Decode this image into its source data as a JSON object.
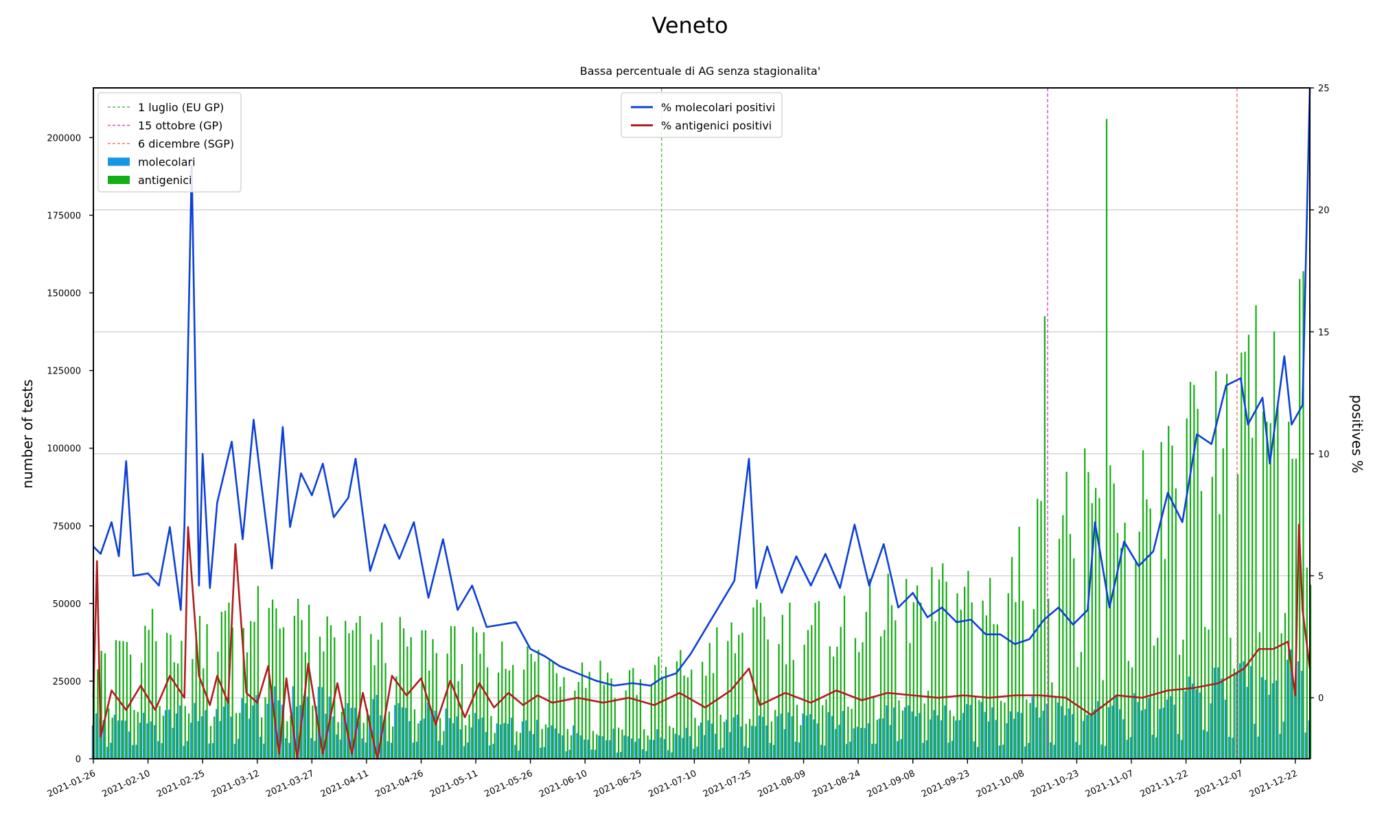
{
  "chart_data": {
    "type": "bar",
    "title": "Veneto",
    "subtitle": "Bassa percentuale di AG senza stagionalita'",
    "ylabel": "number of tests",
    "y2label": "positives %",
    "x_start": "2021-01-26",
    "x_end": "2021-12-26",
    "xtick_labels": [
      "2021-01-26",
      "2021-02-10",
      "2021-02-25",
      "2021-03-12",
      "2021-03-27",
      "2021-04-11",
      "2021-04-26",
      "2021-05-11",
      "2021-05-26",
      "2021-06-10",
      "2021-06-25",
      "2021-07-10",
      "2021-07-25",
      "2021-08-09",
      "2021-08-24",
      "2021-09-08",
      "2021-09-23",
      "2021-10-08",
      "2021-10-23",
      "2021-11-07",
      "2021-11-22",
      "2021-12-07",
      "2021-12-22"
    ],
    "ylim": [
      0,
      216000
    ],
    "yticks": [
      0,
      25000,
      50000,
      75000,
      100000,
      125000,
      150000,
      175000,
      200000
    ],
    "y2lim": [
      -2.5,
      25
    ],
    "y2ticks": [
      0,
      5,
      10,
      15,
      20,
      25
    ],
    "grid": "horizontal on right axis",
    "colors": {
      "molecolari": "#1696e6",
      "antigenici": "#14ad14",
      "mol_pos": "#0b3fd6",
      "ag_pos": "#b01c1c",
      "vline_eu": "#55bb55",
      "vline_oct": "#dd44bb",
      "vline_dec": "#ee7777"
    },
    "vlines": [
      {
        "date": "2021-07-01",
        "label": "1 luglio (EU GP)",
        "color": "#55bb55"
      },
      {
        "date": "2021-10-15",
        "label": "15 ottobre (GP)",
        "color": "#dd44bb"
      },
      {
        "date": "2021-12-06",
        "label": "6 dicembre (SGP)",
        "color": "#ee7777"
      }
    ],
    "legend_left": {
      "position": "upper-left",
      "entries": [
        {
          "label": "1 luglio (EU GP)",
          "kind": "dash",
          "color": "#55bb55"
        },
        {
          "label": "15 ottobre (GP)",
          "kind": "dash",
          "color": "#dd44bb"
        },
        {
          "label": "6 dicembre (SGP)",
          "kind": "dash",
          "color": "#ee7777"
        },
        {
          "label": "molecolari",
          "kind": "patch",
          "color": "#1696e6"
        },
        {
          "label": "antigenici",
          "kind": "patch",
          "color": "#14ad14"
        }
      ]
    },
    "legend_center": {
      "position": "upper-center",
      "entries": [
        {
          "label": "% molecolari positivi",
          "kind": "line",
          "color": "#0b3fd6"
        },
        {
          "label": "% antigenici positivi",
          "kind": "line",
          "color": "#b01c1c"
        }
      ]
    },
    "series_bars": [
      {
        "name": "molecolari",
        "points": [
          [
            "2021-01-26",
            13000
          ],
          [
            "2021-02-05",
            12000
          ],
          [
            "2021-02-15",
            13000
          ],
          [
            "2021-02-25",
            15000
          ],
          [
            "2021-03-07",
            16000
          ],
          [
            "2021-03-17",
            19000
          ],
          [
            "2021-03-27",
            19000
          ],
          [
            "2021-04-06",
            17000
          ],
          [
            "2021-04-16",
            16000
          ],
          [
            "2021-04-26",
            15000
          ],
          [
            "2021-05-06",
            13000
          ],
          [
            "2021-05-16",
            11000
          ],
          [
            "2021-05-26",
            10000
          ],
          [
            "2021-06-05",
            9000
          ],
          [
            "2021-06-15",
            8000
          ],
          [
            "2021-06-25",
            7000
          ],
          [
            "2021-07-05",
            8000
          ],
          [
            "2021-07-15",
            10000
          ],
          [
            "2021-07-25",
            12000
          ],
          [
            "2021-08-04",
            13000
          ],
          [
            "2021-08-14",
            12000
          ],
          [
            "2021-08-24",
            13000
          ],
          [
            "2021-09-03",
            14000
          ],
          [
            "2021-09-13",
            15000
          ],
          [
            "2021-09-23",
            14000
          ],
          [
            "2021-10-03",
            15000
          ],
          [
            "2021-10-13",
            16000
          ],
          [
            "2021-10-23",
            16000
          ],
          [
            "2021-11-02",
            16000
          ],
          [
            "2021-11-12",
            18000
          ],
          [
            "2021-11-22",
            21000
          ],
          [
            "2021-12-02",
            24000
          ],
          [
            "2021-12-12",
            26000
          ],
          [
            "2021-12-22",
            28000
          ],
          [
            "2021-12-26",
            30000
          ]
        ]
      },
      {
        "name": "antigenici",
        "points": [
          [
            "2021-01-26",
            38000
          ],
          [
            "2021-02-05",
            36000
          ],
          [
            "2021-02-15",
            40000
          ],
          [
            "2021-02-25",
            40000
          ],
          [
            "2021-03-07",
            44000
          ],
          [
            "2021-03-17",
            45000
          ],
          [
            "2021-03-27",
            40000
          ],
          [
            "2021-04-06",
            38000
          ],
          [
            "2021-04-16",
            36000
          ],
          [
            "2021-04-26",
            36000
          ],
          [
            "2021-05-06",
            34000
          ],
          [
            "2021-05-16",
            32000
          ],
          [
            "2021-05-26",
            31000
          ],
          [
            "2021-06-05",
            29000
          ],
          [
            "2021-06-15",
            27000
          ],
          [
            "2021-06-25",
            25000
          ],
          [
            "2021-07-05",
            28000
          ],
          [
            "2021-07-15",
            34000
          ],
          [
            "2021-07-25",
            40000
          ],
          [
            "2021-08-04",
            42000
          ],
          [
            "2021-08-14",
            43000
          ],
          [
            "2021-08-24",
            45000
          ],
          [
            "2021-09-03",
            47000
          ],
          [
            "2021-09-13",
            50000
          ],
          [
            "2021-09-23",
            52000
          ],
          [
            "2021-10-03",
            53000
          ],
          [
            "2021-10-13",
            70000
          ],
          [
            "2021-10-23",
            78000
          ],
          [
            "2021-11-02",
            80000
          ],
          [
            "2021-11-12",
            85000
          ],
          [
            "2021-11-22",
            95000
          ],
          [
            "2021-12-02",
            100000
          ],
          [
            "2021-12-12",
            115000
          ],
          [
            "2021-12-22",
            130000
          ],
          [
            "2021-12-26",
            140000
          ]
        ]
      }
    ],
    "bar_spikes": [
      {
        "series": "antigenici",
        "date": "2021-10-14",
        "value": 142500
      },
      {
        "series": "antigenici",
        "date": "2021-10-31",
        "value": 206000
      },
      {
        "series": "antigenici",
        "date": "2021-12-11",
        "value": 146000
      },
      {
        "series": "antigenici",
        "date": "2021-12-24",
        "value": 157000
      }
    ],
    "series_lines": [
      {
        "name": "% molecolari positivi",
        "axis": "right",
        "points": [
          [
            "2021-01-26",
            6.2
          ],
          [
            "2021-01-28",
            5.9
          ],
          [
            "2021-01-31",
            7.2
          ],
          [
            "2021-02-02",
            5.8
          ],
          [
            "2021-02-04",
            9.7
          ],
          [
            "2021-02-06",
            5.0
          ],
          [
            "2021-02-10",
            5.1
          ],
          [
            "2021-02-13",
            4.6
          ],
          [
            "2021-02-16",
            7.0
          ],
          [
            "2021-02-19",
            3.6
          ],
          [
            "2021-02-20",
            7.0
          ],
          [
            "2021-02-22",
            21.8
          ],
          [
            "2021-02-24",
            4.6
          ],
          [
            "2021-02-25",
            10.0
          ],
          [
            "2021-02-27",
            4.5
          ],
          [
            "2021-03-01",
            8.0
          ],
          [
            "2021-03-05",
            10.5
          ],
          [
            "2021-03-08",
            6.5
          ],
          [
            "2021-03-11",
            11.4
          ],
          [
            "2021-03-13",
            8.9
          ],
          [
            "2021-03-16",
            5.3
          ],
          [
            "2021-03-19",
            11.1
          ],
          [
            "2021-03-21",
            7.0
          ],
          [
            "2021-03-24",
            9.2
          ],
          [
            "2021-03-27",
            8.3
          ],
          [
            "2021-03-30",
            9.6
          ],
          [
            "2021-04-02",
            7.4
          ],
          [
            "2021-04-06",
            8.2
          ],
          [
            "2021-04-08",
            9.8
          ],
          [
            "2021-04-12",
            5.2
          ],
          [
            "2021-04-16",
            7.1
          ],
          [
            "2021-04-20",
            5.7
          ],
          [
            "2021-04-24",
            7.2
          ],
          [
            "2021-04-28",
            4.1
          ],
          [
            "2021-05-02",
            6.5
          ],
          [
            "2021-05-06",
            3.6
          ],
          [
            "2021-05-10",
            4.6
          ],
          [
            "2021-05-14",
            2.9
          ],
          [
            "2021-05-18",
            3.0
          ],
          [
            "2021-05-22",
            3.1
          ],
          [
            "2021-05-26",
            2.0
          ],
          [
            "2021-05-30",
            1.7
          ],
          [
            "2021-06-03",
            1.3
          ],
          [
            "2021-06-08",
            1.0
          ],
          [
            "2021-06-13",
            0.7
          ],
          [
            "2021-06-18",
            0.5
          ],
          [
            "2021-06-23",
            0.6
          ],
          [
            "2021-06-28",
            0.5
          ],
          [
            "2021-07-01",
            0.8
          ],
          [
            "2021-07-05",
            1.0
          ],
          [
            "2021-07-09",
            1.8
          ],
          [
            "2021-07-13",
            2.8
          ],
          [
            "2021-07-17",
            3.8
          ],
          [
            "2021-07-21",
            4.8
          ],
          [
            "2021-07-25",
            9.8
          ],
          [
            "2021-07-27",
            4.5
          ],
          [
            "2021-07-30",
            6.2
          ],
          [
            "2021-08-03",
            4.3
          ],
          [
            "2021-08-07",
            5.8
          ],
          [
            "2021-08-11",
            4.6
          ],
          [
            "2021-08-15",
            5.9
          ],
          [
            "2021-08-19",
            4.5
          ],
          [
            "2021-08-23",
            7.1
          ],
          [
            "2021-08-27",
            4.6
          ],
          [
            "2021-08-31",
            6.3
          ],
          [
            "2021-09-04",
            3.7
          ],
          [
            "2021-09-08",
            4.3
          ],
          [
            "2021-09-12",
            3.3
          ],
          [
            "2021-09-16",
            3.7
          ],
          [
            "2021-09-20",
            3.1
          ],
          [
            "2021-09-24",
            3.2
          ],
          [
            "2021-09-28",
            2.6
          ],
          [
            "2021-10-02",
            2.6
          ],
          [
            "2021-10-06",
            2.2
          ],
          [
            "2021-10-10",
            2.4
          ],
          [
            "2021-10-14",
            3.2
          ],
          [
            "2021-10-18",
            3.7
          ],
          [
            "2021-10-22",
            3.0
          ],
          [
            "2021-10-26",
            3.6
          ],
          [
            "2021-10-28",
            7.2
          ],
          [
            "2021-11-01",
            3.7
          ],
          [
            "2021-11-05",
            6.4
          ],
          [
            "2021-11-09",
            5.4
          ],
          [
            "2021-11-13",
            6.0
          ],
          [
            "2021-11-17",
            8.4
          ],
          [
            "2021-11-21",
            7.2
          ],
          [
            "2021-11-25",
            10.8
          ],
          [
            "2021-11-29",
            10.4
          ],
          [
            "2021-12-03",
            12.8
          ],
          [
            "2021-12-07",
            13.1
          ],
          [
            "2021-12-09",
            11.2
          ],
          [
            "2021-12-13",
            12.3
          ],
          [
            "2021-12-15",
            9.6
          ],
          [
            "2021-12-19",
            14.0
          ],
          [
            "2021-12-21",
            11.2
          ],
          [
            "2021-12-24",
            12.0
          ],
          [
            "2021-12-26",
            25.0
          ]
        ]
      },
      {
        "name": "% antigenici positivi",
        "axis": "right",
        "points": [
          [
            "2021-01-26",
            0.0
          ],
          [
            "2021-01-27",
            5.6
          ],
          [
            "2021-01-28",
            -1.6
          ],
          [
            "2021-01-31",
            0.3
          ],
          [
            "2021-02-04",
            -0.5
          ],
          [
            "2021-02-08",
            0.5
          ],
          [
            "2021-02-12",
            -0.5
          ],
          [
            "2021-02-16",
            0.9
          ],
          [
            "2021-02-20",
            0.0
          ],
          [
            "2021-02-21",
            7.0
          ],
          [
            "2021-02-24",
            0.9
          ],
          [
            "2021-02-27",
            -0.3
          ],
          [
            "2021-03-01",
            0.9
          ],
          [
            "2021-03-04",
            -0.2
          ],
          [
            "2021-03-06",
            6.3
          ],
          [
            "2021-03-09",
            0.2
          ],
          [
            "2021-03-12",
            -0.2
          ],
          [
            "2021-03-15",
            1.3
          ],
          [
            "2021-03-18",
            -2.3
          ],
          [
            "2021-03-20",
            0.8
          ],
          [
            "2021-03-23",
            -2.5
          ],
          [
            "2021-03-26",
            1.4
          ],
          [
            "2021-03-30",
            -2.3
          ],
          [
            "2021-04-03",
            0.6
          ],
          [
            "2021-04-07",
            -2.3
          ],
          [
            "2021-04-10",
            0.2
          ],
          [
            "2021-04-14",
            -2.5
          ],
          [
            "2021-04-18",
            0.9
          ],
          [
            "2021-04-22",
            0.1
          ],
          [
            "2021-04-26",
            0.8
          ],
          [
            "2021-04-30",
            -1.1
          ],
          [
            "2021-05-04",
            0.7
          ],
          [
            "2021-05-08",
            -0.8
          ],
          [
            "2021-05-12",
            0.6
          ],
          [
            "2021-05-16",
            -0.4
          ],
          [
            "2021-05-20",
            0.2
          ],
          [
            "2021-05-24",
            -0.3
          ],
          [
            "2021-05-28",
            0.1
          ],
          [
            "2021-06-01",
            -0.2
          ],
          [
            "2021-06-08",
            0.0
          ],
          [
            "2021-06-15",
            -0.2
          ],
          [
            "2021-06-22",
            0.0
          ],
          [
            "2021-06-29",
            -0.3
          ],
          [
            "2021-07-06",
            0.2
          ],
          [
            "2021-07-13",
            -0.4
          ],
          [
            "2021-07-20",
            0.3
          ],
          [
            "2021-07-25",
            1.2
          ],
          [
            "2021-07-28",
            -0.3
          ],
          [
            "2021-08-04",
            0.2
          ],
          [
            "2021-08-11",
            -0.2
          ],
          [
            "2021-08-18",
            0.3
          ],
          [
            "2021-08-25",
            -0.1
          ],
          [
            "2021-09-01",
            0.2
          ],
          [
            "2021-09-08",
            0.1
          ],
          [
            "2021-09-15",
            0.0
          ],
          [
            "2021-09-22",
            0.1
          ],
          [
            "2021-09-29",
            0.0
          ],
          [
            "2021-10-06",
            0.1
          ],
          [
            "2021-10-13",
            0.1
          ],
          [
            "2021-10-20",
            0.0
          ],
          [
            "2021-10-27",
            -0.7
          ],
          [
            "2021-11-03",
            0.1
          ],
          [
            "2021-11-10",
            0.0
          ],
          [
            "2021-11-17",
            0.3
          ],
          [
            "2021-11-24",
            0.4
          ],
          [
            "2021-12-01",
            0.6
          ],
          [
            "2021-12-08",
            1.2
          ],
          [
            "2021-12-12",
            2.0
          ],
          [
            "2021-12-16",
            2.0
          ],
          [
            "2021-12-20",
            2.3
          ],
          [
            "2021-12-22",
            0.1
          ],
          [
            "2021-12-23",
            7.1
          ],
          [
            "2021-12-24",
            3.6
          ],
          [
            "2021-12-26",
            1.2
          ]
        ]
      }
    ]
  }
}
